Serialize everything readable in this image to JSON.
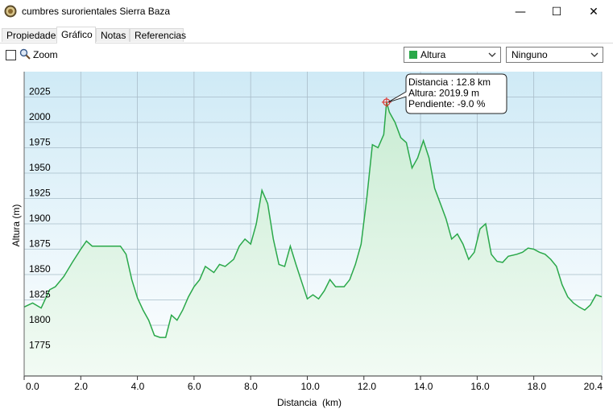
{
  "window": {
    "title": "cumbres surorientales Sierra Baza",
    "minimize": "—",
    "maximize": "☐",
    "close": "✕"
  },
  "tabs": [
    {
      "label": "Propiedades",
      "active": false
    },
    {
      "label": "Gráfico",
      "active": true
    },
    {
      "label": "Notas",
      "active": false
    },
    {
      "label": "Referencias",
      "active": false
    }
  ],
  "toolbar": {
    "zoom_label": "Zoom",
    "series_select": {
      "value": "Altura",
      "swatch_color": "#2aa84a"
    },
    "secondary_select": {
      "value": "Ninguno"
    }
  },
  "chart_data": {
    "type": "area",
    "xlabel": "Distancia  (km)",
    "ylabel": "Altura (m)",
    "xlim": [
      0,
      20.4
    ],
    "ylim": [
      1750,
      2050
    ],
    "x_ticks": [
      "0.0",
      "2.0",
      "4.0",
      "6.0",
      "8.0",
      "10.0",
      "12.0",
      "14.0",
      "16.0",
      "18.0",
      "20.4"
    ],
    "y_ticks": [
      "1775",
      "1800",
      "1825",
      "1850",
      "1875",
      "1900",
      "1925",
      "1950",
      "1975",
      "2000",
      "2025"
    ],
    "grid": true,
    "line_color": "#2aa84a",
    "series": [
      {
        "x": [
          0.0,
          0.3,
          0.6,
          0.9,
          1.1,
          1.4,
          1.7,
          2.0,
          2.2,
          2.4,
          2.6,
          2.8,
          3.1,
          3.4,
          3.6,
          3.8,
          4.0,
          4.2,
          4.4,
          4.6,
          4.8,
          5.0,
          5.2,
          5.4,
          5.6,
          5.8,
          6.0,
          6.2,
          6.4,
          6.7,
          6.9,
          7.1,
          7.4,
          7.6,
          7.8,
          8.0,
          8.2,
          8.4,
          8.6,
          8.8,
          9.0,
          9.2,
          9.4,
          9.6,
          9.8,
          10.0,
          10.2,
          10.4,
          10.6,
          10.8,
          11.0,
          11.3,
          11.5,
          11.7,
          11.9,
          12.1,
          12.3,
          12.5,
          12.7,
          12.8,
          12.9,
          13.1,
          13.3,
          13.5,
          13.7,
          13.9,
          14.1,
          14.3,
          14.5,
          14.7,
          14.9,
          15.1,
          15.3,
          15.5,
          15.7,
          15.9,
          16.1,
          16.3,
          16.5,
          16.7,
          16.9,
          17.1,
          17.4,
          17.6,
          17.8,
          18.0,
          18.2,
          18.4,
          18.6,
          18.8,
          19.0,
          19.2,
          19.4,
          19.6,
          19.8,
          20.0,
          20.2,
          20.4
        ],
        "values": [
          1818,
          1822,
          1817,
          1835,
          1838,
          1848,
          1862,
          1875,
          1883,
          1878,
          1878,
          1878,
          1878,
          1878,
          1870,
          1845,
          1827,
          1815,
          1805,
          1790,
          1788,
          1788,
          1810,
          1805,
          1815,
          1828,
          1838,
          1845,
          1858,
          1852,
          1860,
          1858,
          1865,
          1878,
          1885,
          1880,
          1900,
          1933,
          1920,
          1885,
          1860,
          1858,
          1878,
          1860,
          1843,
          1826,
          1830,
          1826,
          1834,
          1845,
          1838,
          1838,
          1845,
          1860,
          1880,
          1925,
          1978,
          1975,
          1988,
          2020,
          2010,
          2000,
          1985,
          1980,
          1955,
          1965,
          1982,
          1965,
          1935,
          1920,
          1905,
          1885,
          1890,
          1880,
          1865,
          1872,
          1895,
          1900,
          1870,
          1863,
          1862,
          1868,
          1870,
          1872,
          1876,
          1875,
          1872,
          1870,
          1865,
          1858,
          1840,
          1828,
          1822,
          1818,
          1815,
          1820,
          1830,
          1828
        ]
      }
    ],
    "tooltip": {
      "lines": [
        "Distancia : 12.8 km",
        "Altura: 2019.9 m",
        "Pendiente: -9.0 %"
      ],
      "x": 12.8,
      "y": 2019.9
    }
  }
}
